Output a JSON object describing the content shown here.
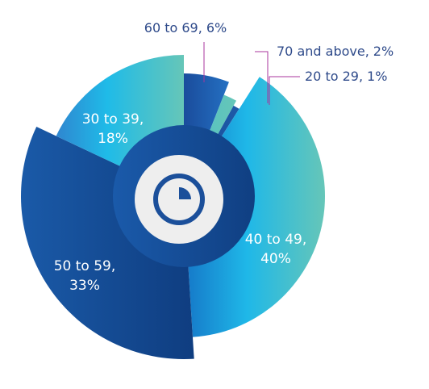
{
  "chart_data": {
    "type": "pie",
    "categories": [
      "60 to 69,",
      "70 and above,",
      "20 to 29,",
      "40 to 49,",
      "50 to 59,",
      "30 to 39,"
    ],
    "values": [
      6,
      2,
      1,
      40,
      33,
      18
    ],
    "value_labels": [
      "6%",
      "2%",
      "1%",
      "40%",
      "33%",
      "18%"
    ]
  }
}
